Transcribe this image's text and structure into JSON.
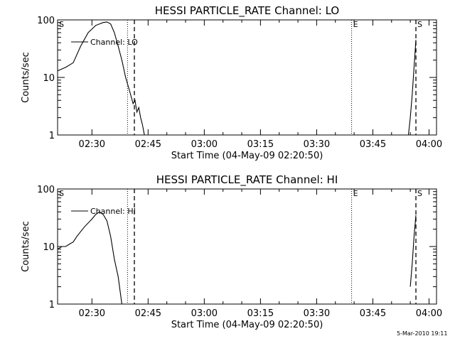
{
  "chart_data": [
    {
      "type": "line",
      "title": "HESSI PARTICLE_RATE Channel: LO",
      "xlabel": "Start Time (04-May-09 02:20:50)",
      "ylabel": "Counts/sec",
      "y_scale": "log",
      "ylim": [
        1,
        100
      ],
      "xlim": [
        "02:20:50",
        "04:02:00"
      ],
      "x_ticks": [
        "02:30",
        "02:45",
        "03:00",
        "03:15",
        "03:30",
        "03:45",
        "04:00"
      ],
      "y_ticks": [
        "1",
        "10",
        "100"
      ],
      "grid": false,
      "legend": {
        "position": "top-left",
        "label": "Channel: LO"
      },
      "markers": [
        {
          "label": "S",
          "time": "02:20:50",
          "style": "none"
        },
        {
          "label": "",
          "time": "02:39:30",
          "style": "dotted"
        },
        {
          "label": "",
          "time": "02:41:20",
          "style": "dashed"
        },
        {
          "label": "E",
          "time": "03:39:20",
          "style": "dotted"
        },
        {
          "label": "S",
          "time": "03:56:30",
          "style": "dashed"
        }
      ],
      "series": [
        {
          "name": "Channel: LO",
          "segments": [
            [
              [
                "02:20:50",
                13
              ],
              [
                "02:23:00",
                15
              ],
              [
                "02:25:00",
                18
              ],
              [
                "02:27:00",
                35
              ],
              [
                "02:29:00",
                60
              ],
              [
                "02:31:00",
                80
              ],
              [
                "02:33:00",
                90
              ],
              [
                "02:34:00",
                92
              ],
              [
                "02:35:00",
                85
              ],
              [
                "02:36:00",
                60
              ],
              [
                "02:37:00",
                35
              ],
              [
                "02:38:00",
                20
              ],
              [
                "02:39:00",
                10
              ],
              [
                "02:40:00",
                6
              ],
              [
                "02:41:00",
                3.5
              ],
              [
                "02:41:30",
                4
              ],
              [
                "02:42:00",
                2.5
              ],
              [
                "02:42:30",
                3
              ],
              [
                "02:43:00",
                2
              ],
              [
                "02:43:30",
                1.5
              ],
              [
                "02:44:00",
                1
              ]
            ],
            [
              [
                "03:54:30",
                1
              ],
              [
                "03:55:00",
                2
              ],
              [
                "03:55:30",
                5
              ],
              [
                "03:56:00",
                15
              ],
              [
                "03:56:30",
                45
              ]
            ]
          ]
        }
      ]
    },
    {
      "type": "line",
      "title": "HESSI PARTICLE_RATE Channel: HI",
      "xlabel": "Start Time (04-May-09 02:20:50)",
      "ylabel": "Counts/sec",
      "y_scale": "log",
      "ylim": [
        1,
        100
      ],
      "xlim": [
        "02:20:50",
        "04:02:00"
      ],
      "x_ticks": [
        "02:30",
        "02:45",
        "03:00",
        "03:15",
        "03:30",
        "03:45",
        "04:00"
      ],
      "y_ticks": [
        "1",
        "10",
        "100"
      ],
      "grid": false,
      "legend": {
        "position": "top-left",
        "label": "Channel: HI"
      },
      "markers": [
        {
          "label": "S",
          "time": "02:20:50",
          "style": "none"
        },
        {
          "label": "",
          "time": "02:39:30",
          "style": "dotted"
        },
        {
          "label": "",
          "time": "02:41:20",
          "style": "dashed"
        },
        {
          "label": "E",
          "time": "03:39:20",
          "style": "dotted"
        },
        {
          "label": "S",
          "time": "03:56:30",
          "style": "dashed"
        }
      ],
      "series": [
        {
          "name": "Channel: HI",
          "segments": [
            [
              [
                "02:20:50",
                9
              ],
              [
                "02:22:00",
                10
              ],
              [
                "02:23:00",
                10
              ],
              [
                "02:24:00",
                11
              ],
              [
                "02:25:00",
                12
              ],
              [
                "02:26:00",
                15
              ],
              [
                "02:28:00",
                22
              ],
              [
                "02:30:00",
                30
              ],
              [
                "02:31:00",
                36
              ],
              [
                "02:32:00",
                40
              ],
              [
                "02:33:00",
                36
              ],
              [
                "02:34:00",
                28
              ],
              [
                "02:35:00",
                15
              ],
              [
                "02:36:00",
                6
              ],
              [
                "02:37:00",
                3
              ],
              [
                "02:38:00",
                1
              ]
            ],
            [
              [
                "03:55:00",
                2
              ],
              [
                "03:55:30",
                5
              ],
              [
                "03:56:00",
                15
              ],
              [
                "03:56:30",
                35
              ]
            ]
          ]
        }
      ]
    }
  ],
  "timestamp": "5-Mar-2010 19:11"
}
